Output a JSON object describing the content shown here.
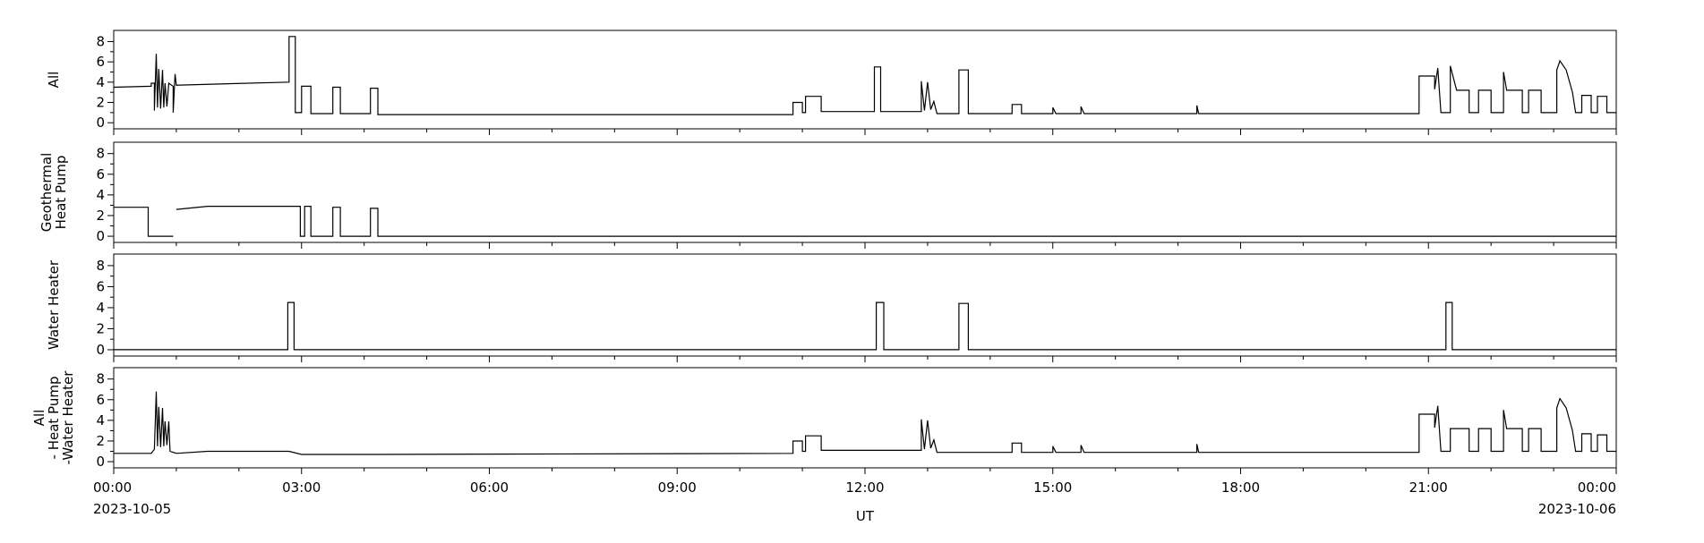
{
  "chart_data": {
    "type": "line",
    "xlim": [
      0,
      24
    ],
    "xticks": [
      {
        "value": 0,
        "label": "00:00"
      },
      {
        "value": 3,
        "label": "03:00"
      },
      {
        "value": 6,
        "label": "06:00"
      },
      {
        "value": 9,
        "label": "09:00"
      },
      {
        "value": 12,
        "label": "12:00"
      },
      {
        "value": 15,
        "label": "15:00"
      },
      {
        "value": 18,
        "label": "18:00"
      },
      {
        "value": 21,
        "label": "21:00"
      },
      {
        "value": 24,
        "label": "00:00"
      }
    ],
    "xminorticks": [
      1,
      2,
      4,
      5,
      7,
      8,
      10,
      11,
      13,
      14,
      16,
      17,
      19,
      20,
      22,
      23
    ],
    "x_date_labels": [
      "2023-10-05",
      "2023-10-06"
    ],
    "xlabel": "UT",
    "color": "#000000",
    "ylim": [
      -0.6,
      9.1
    ],
    "yticks": [
      0,
      2,
      4,
      6,
      8
    ],
    "yminorticks": [
      1,
      3,
      5,
      7
    ],
    "panels": [
      {
        "ylabel": [
          "All"
        ],
        "x": [
          0,
          0.6,
          0.6,
          0.65,
          0.65,
          0.68,
          0.7,
          0.72,
          0.75,
          0.78,
          0.8,
          0.82,
          0.85,
          0.88,
          0.9,
          0.95,
          0.95,
          0.98,
          1.0,
          2.8,
          2.8,
          2.9,
          2.9,
          3.0,
          3.0,
          3.15,
          3.15,
          3.5,
          3.5,
          3.62,
          3.62,
          4.1,
          4.1,
          4.22,
          4.22,
          10.85,
          10.85,
          11.0,
          11.0,
          11.05,
          11.05,
          11.3,
          11.3,
          12.15,
          12.15,
          12.25,
          12.25,
          12.9,
          12.9,
          12.95,
          13.0,
          13.05,
          13.1,
          13.15,
          13.5,
          13.5,
          13.65,
          13.65,
          14.35,
          14.35,
          14.5,
          14.5,
          15.0,
          15.0,
          15.05,
          15.45,
          15.45,
          15.5,
          17.3,
          17.3,
          17.33,
          20.85,
          20.85,
          21.1,
          21.1,
          21.15,
          21.2,
          21.35,
          21.35,
          21.45,
          21.65,
          21.65,
          21.8,
          21.8,
          22.0,
          22.0,
          22.2,
          22.2,
          22.25,
          22.5,
          22.5,
          22.6,
          22.6,
          22.8,
          22.8,
          23.05,
          23.05,
          23.1,
          23.2,
          23.3,
          23.35,
          23.45,
          23.45,
          23.6,
          23.6,
          23.7,
          23.7,
          23.85,
          23.85,
          24
        ],
        "values": [
          3.5,
          3.6,
          3.9,
          3.9,
          1.2,
          6.8,
          1.5,
          5.3,
          1.4,
          5.2,
          1.5,
          3.9,
          1.6,
          3.9,
          3.8,
          3.6,
          1.0,
          4.8,
          3.7,
          4.0,
          8.5,
          8.5,
          1.0,
          1.0,
          3.6,
          3.6,
          0.9,
          0.9,
          3.5,
          3.5,
          0.9,
          0.9,
          3.4,
          3.4,
          0.8,
          0.8,
          2.0,
          2.0,
          1.0,
          1.0,
          2.6,
          2.6,
          1.1,
          1.1,
          5.5,
          5.5,
          1.1,
          1.1,
          4.1,
          1.2,
          4.0,
          1.3,
          2.1,
          0.9,
          0.9,
          5.2,
          5.2,
          0.9,
          0.9,
          1.8,
          1.8,
          0.9,
          0.9,
          1.5,
          0.9,
          0.9,
          1.6,
          0.9,
          0.9,
          1.7,
          0.9,
          0.9,
          4.6,
          4.6,
          3.3,
          5.4,
          1.0,
          1.0,
          5.6,
          3.2,
          3.2,
          1.0,
          1.0,
          3.2,
          3.2,
          1.0,
          1.0,
          5.0,
          3.2,
          3.2,
          1.0,
          1.0,
          3.2,
          3.2,
          1.0,
          1.0,
          5.2,
          6.1,
          5.2,
          3.0,
          1.0,
          1.0,
          2.7,
          2.7,
          1.0,
          1.0,
          2.6,
          2.6,
          1.0,
          1.0
        ]
      },
      {
        "ylabel": [
          "Geothermal",
          "Heat Pump"
        ],
        "x": [
          0,
          0.55,
          0.55,
          0.95,
          0.97,
          1.0,
          1.5,
          2.98,
          2.98,
          3.05,
          3.05,
          3.15,
          3.15,
          3.5,
          3.5,
          3.62,
          3.62,
          4.1,
          4.1,
          4.22,
          4.22,
          24
        ],
        "values": [
          2.8,
          2.8,
          0,
          0,
          null,
          2.6,
          2.9,
          2.9,
          0,
          0,
          2.9,
          2.9,
          0,
          0,
          2.8,
          2.8,
          0,
          0,
          2.7,
          2.7,
          0,
          0
        ]
      },
      {
        "ylabel": [
          "Water Heater"
        ],
        "x": [
          0,
          2.78,
          2.78,
          2.88,
          2.88,
          12.18,
          12.18,
          12.3,
          12.3,
          13.5,
          13.5,
          13.65,
          13.65,
          21.28,
          21.28,
          21.38,
          21.38,
          24
        ],
        "values": [
          0,
          0,
          4.5,
          4.5,
          0,
          0,
          4.5,
          4.5,
          0,
          0,
          4.4,
          4.4,
          0,
          0,
          4.5,
          4.5,
          0,
          0
        ]
      },
      {
        "ylabel": [
          "All",
          "- Heat Pump",
          "-Water Heater"
        ],
        "x": [
          0,
          0.6,
          0.65,
          0.68,
          0.7,
          0.72,
          0.75,
          0.78,
          0.8,
          0.82,
          0.85,
          0.88,
          0.9,
          1.0,
          1.5,
          2.8,
          3.0,
          4.22,
          10.85,
          10.85,
          11.0,
          11.0,
          11.05,
          11.05,
          11.3,
          11.3,
          12.9,
          12.9,
          12.95,
          13.0,
          13.05,
          13.1,
          13.15,
          14.35,
          14.35,
          14.5,
          14.5,
          15.0,
          15.0,
          15.05,
          15.45,
          15.45,
          15.5,
          17.3,
          17.3,
          17.33,
          20.85,
          20.85,
          21.1,
          21.1,
          21.15,
          21.2,
          21.35,
          21.35,
          21.45,
          21.65,
          21.65,
          21.8,
          21.8,
          22.0,
          22.0,
          22.2,
          22.2,
          22.25,
          22.5,
          22.5,
          22.6,
          22.6,
          22.8,
          22.8,
          23.05,
          23.05,
          23.1,
          23.2,
          23.3,
          23.35,
          23.45,
          23.45,
          23.6,
          23.6,
          23.7,
          23.7,
          23.85,
          23.85,
          24
        ],
        "values": [
          0.8,
          0.8,
          1.2,
          6.8,
          1.5,
          5.3,
          1.4,
          5.2,
          1.5,
          3.9,
          1.6,
          3.9,
          1.0,
          0.8,
          1.0,
          1.0,
          0.7,
          0.7,
          0.8,
          2.0,
          2.0,
          1.0,
          1.0,
          2.5,
          2.5,
          1.1,
          1.1,
          4.1,
          1.2,
          4.0,
          1.3,
          2.1,
          0.9,
          0.9,
          1.8,
          1.8,
          0.9,
          0.9,
          1.5,
          0.9,
          0.9,
          1.6,
          0.9,
          0.9,
          1.7,
          0.9,
          0.9,
          4.6,
          4.6,
          3.3,
          5.4,
          1.0,
          1.0,
          3.2,
          3.2,
          3.2,
          1.0,
          1.0,
          3.2,
          3.2,
          1.0,
          1.0,
          5.0,
          3.2,
          3.2,
          1.0,
          1.0,
          3.2,
          3.2,
          1.0,
          1.0,
          5.2,
          6.1,
          5.2,
          3.0,
          1.0,
          1.0,
          2.7,
          2.7,
          1.0,
          1.0,
          2.6,
          2.6,
          1.0,
          1.0
        ]
      }
    ]
  }
}
